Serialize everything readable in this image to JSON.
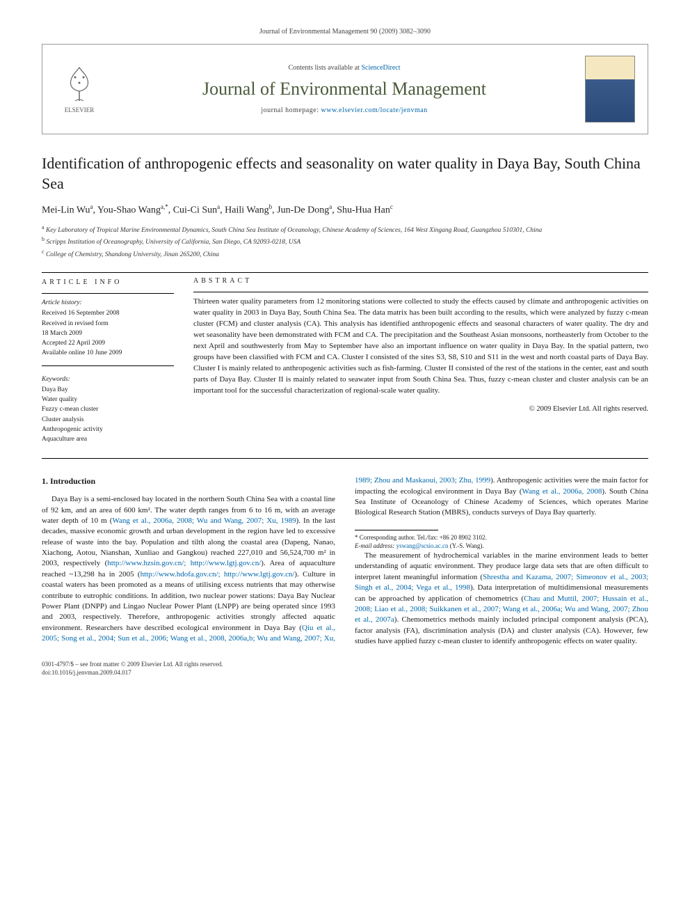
{
  "topbar": "Journal of Environmental Management 90 (2009) 3082–3090",
  "header": {
    "contents_prefix": "Contents lists available at ",
    "contents_link": "ScienceDirect",
    "journal_name": "Journal of Environmental Management",
    "homepage_prefix": "journal homepage: ",
    "homepage_url": "www.elsevier.com/locate/jenvman",
    "publisher": "ELSEVIER"
  },
  "article": {
    "title": "Identification of anthropogenic effects and seasonality on water quality in Daya Bay, South China Sea",
    "authors_html": "Mei-Lin Wu<sup>a</sup>, You-Shao Wang<sup>a,*</sup>, Cui-Ci Sun<sup>a</sup>, Haili Wang<sup>b</sup>, Jun-De Dong<sup>a</sup>, Shu-Hua Han<sup>c</sup>",
    "affiliations": [
      {
        "sup": "a",
        "text": "Key Laboratory of Tropical Marine Environmental Dynamics, South China Sea Institute of Oceanology, Chinese Academy of Sciences, 164 West Xingang Road, Guangzhou 510301, China"
      },
      {
        "sup": "b",
        "text": "Scripps Institution of Oceanography, University of California, San Diego, CA 92093-0218, USA"
      },
      {
        "sup": "c",
        "text": "College of Chemistry, Shandong University, Jinan 265200, China"
      }
    ]
  },
  "info": {
    "heading": "ARTICLE INFO",
    "history_label": "Article history:",
    "history": [
      "Received 16 September 2008",
      "Received in revised form",
      "18 March 2009",
      "Accepted 22 April 2009",
      "Available online 10 June 2009"
    ],
    "keywords_label": "Keywords:",
    "keywords": [
      "Daya Bay",
      "Water quality",
      "Fuzzy c-mean cluster",
      "Cluster analysis",
      "Anthropogenic activity",
      "Aquaculture area"
    ]
  },
  "abstract": {
    "heading": "ABSTRACT",
    "text": "Thirteen water quality parameters from 12 monitoring stations were collected to study the effects caused by climate and anthropogenic activities on water quality in 2003 in Daya Bay, South China Sea. The data matrix has been built according to the results, which were analyzed by fuzzy c-mean cluster (FCM) and cluster analysis (CA). This analysis has identified anthropogenic effects and seasonal characters of water quality. The dry and wet seasonality have been demonstrated with FCM and CA. The precipitation and the Southeast Asian monsoons, northeasterly from October to the next April and southwesterly from May to September have also an important influence on water quality in Daya Bay. In the spatial pattern, two groups have been classified with FCM and CA. Cluster I consisted of the sites S3, S8, S10 and S11 in the west and north coastal parts of Daya Bay. Cluster I is mainly related to anthropogenic activities such as fish-farming. Cluster II consisted of the rest of the stations in the center, east and south parts of Daya Bay. Cluster II is mainly related to seawater input from South China Sea. Thus, fuzzy c-mean cluster and cluster analysis can be an important tool for the successful characterization of regional-scale water quality.",
    "copyright": "© 2009 Elsevier Ltd. All rights reserved."
  },
  "body": {
    "section_heading": "1. Introduction",
    "para1_a": "Daya Bay is a semi-enclosed bay located in the northern South China Sea with a coastal line of 92 km, and an area of 600 km². The water depth ranges from 6 to 16 m, with an average water depth of 10 m (",
    "para1_b": "Wang et al., 2006a, 2008; Wu and Wang, 2007; Xu, 1989",
    "para1_c": "). In the last decades, massive economic growth and urban development in the region have led to excessive release of waste into the bay. Population and tilth along the coastal area (Dapeng, Nanao, Xiachong, Aotou, Nianshan, Xunliao and Gangkou) reached 227,010 and 56,524,700 m² in 2003, respectively (",
    "para1_d": "http://www.hzsin.gov.cn/; http://www.lgtj.gov.cn/",
    "para1_e": "). Area of aquaculture reached ~13,298 ha in 2005 (",
    "para1_f": "http://www.hdofa.gov.cn/; http://www.lgtj.gov.cn/",
    "para1_g": "). Culture in coastal waters has been promoted as a means of utilising excess nutrients that may otherwise contribute to eutrophic conditions. In addition, two nuclear power stations: Daya Bay Nuclear Power Plant (DNPP) and Lingao Nuclear Power Plant (LNPP) are being operated since 1993 and 2003, respectively. Therefore, anthropogenic ",
    "para1_h": "activities strongly affected aquatic environment. Researchers have described ecological environment in Daya Bay (",
    "para1_i": "Qiu et al., 2005; Song et al., 2004; Sun et al., 2006; Wang et al., 2008, 2006a,b; Wu and Wang, 2007; Xu, 1989; Zhou and Maskaoui, 2003; Zhu, 1999",
    "para1_j": "). Anthropogenic activities were the main factor for impacting the ecological environment in Daya Bay (",
    "para1_k": "Wang et al., 2006a, 2008",
    "para1_l": "). South China Sea Institute of Oceanology of Chinese Academy of Sciences, which operates Marine Biological Research Station (MBRS), conducts surveys of Daya Bay quarterly.",
    "para2_a": "The measurement of hydrochemical variables in the marine environment leads to better understanding of aquatic environment. They produce large data sets that are often difficult to interpret latent meaningful information (",
    "para2_b": "Shrestha and Kazama, 2007; Simeonov et al., 2003; Singh et al., 2004; Vega et al., 1998",
    "para2_c": "). Data interpretation of multidimensional measurements can be approached by application of chemometrics (",
    "para2_d": "Chau and Muttil, 2007; Hussain et al., 2008; Liao et al., 2008; Suikkanen et al., 2007; Wang et al., 2006a; Wu and Wang, 2007; Zhou et al., 2007a",
    "para2_e": "). Chemometrics methods mainly included principal component analysis (PCA), factor analysis (FA), discrimination analysis (DA) and cluster analysis (CA). However, few studies have applied fuzzy c-mean cluster to identify anthropogenic effects on water quality."
  },
  "footnote": {
    "corr": "* Corresponding author. Tel./fax: +86 20 8902 3102.",
    "email_label": "E-mail address: ",
    "email": "yswang@scsio.ac.cn",
    "email_suffix": " (Y.-S. Wang)."
  },
  "footer": {
    "line1": "0301-4797/$ – see front matter © 2009 Elsevier Ltd. All rights reserved.",
    "line2": "doi:10.1016/j.jenvman.2009.04.017"
  },
  "colors": {
    "link": "#0066aa",
    "journal_title": "#4a5a3a"
  }
}
